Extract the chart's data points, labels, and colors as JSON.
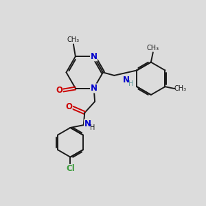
{
  "bg_color": "#dcdcdc",
  "bond_color": "#1a1a1a",
  "N_color": "#0000cc",
  "O_color": "#cc0000",
  "Cl_color": "#3a9a3a",
  "NH_color": "#5a9a9a",
  "figsize": [
    3.0,
    3.0
  ],
  "dpi": 100,
  "xlim": [
    0,
    10
  ],
  "ylim": [
    0,
    10
  ]
}
